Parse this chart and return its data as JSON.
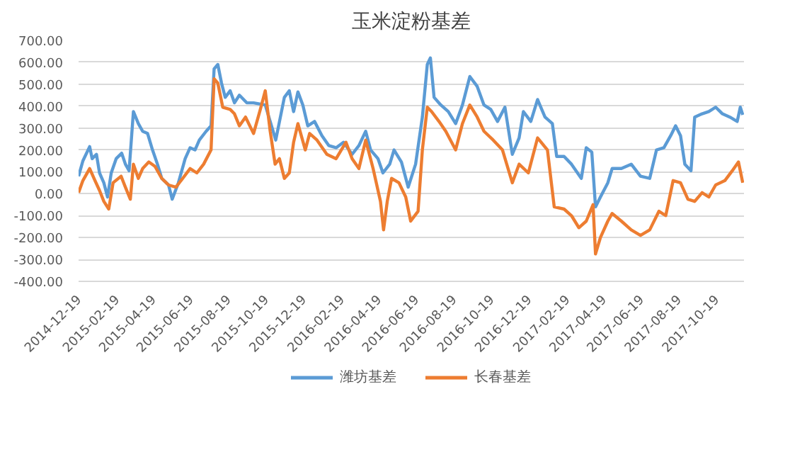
{
  "chart_data": {
    "type": "line",
    "title": "玉米淀粉基差",
    "xlim": [
      "2014-12-19",
      "2017-12-03"
    ],
    "xticks": [
      "2014-12-19",
      "2015-02-19",
      "2015-04-19",
      "2015-06-19",
      "2015-08-19",
      "2015-10-19",
      "2015-12-19",
      "2016-02-19",
      "2016-04-19",
      "2016-06-19",
      "2016-08-19",
      "2016-10-19",
      "2016-12-19",
      "2017-02-19",
      "2017-04-19",
      "2017-06-19",
      "2017-08-19",
      "2017-10-19"
    ],
    "ylim": [
      -400,
      700
    ],
    "yticks": [
      {
        "value": -400,
        "label": "-400.00"
      },
      {
        "value": -300,
        "label": "-300.00"
      },
      {
        "value": -200,
        "label": "-200.00"
      },
      {
        "value": -100,
        "label": "-100.00"
      },
      {
        "value": 0,
        "label": "0.00"
      },
      {
        "value": 100,
        "label": "100.00"
      },
      {
        "value": 200,
        "label": "200.00"
      },
      {
        "value": 300,
        "label": "300.00"
      },
      {
        "value": 400,
        "label": "400.00"
      },
      {
        "value": 500,
        "label": "500.00"
      },
      {
        "value": 600,
        "label": "600.00"
      },
      {
        "value": 700,
        "label": "700.00"
      }
    ],
    "grid": "y",
    "legend": "bottom",
    "marker": "none",
    "line_style": "solid",
    "series": [
      {
        "name": "潍坊基差",
        "color": "#5b9bd5",
        "x": [
          "2014-12-19",
          "2014-12-26",
          "2015-01-06",
          "2015-01-10",
          "2015-01-17",
          "2015-01-22",
          "2015-01-29",
          "2015-02-04",
          "2015-02-10",
          "2015-02-18",
          "2015-02-27",
          "2015-03-05",
          "2015-03-11",
          "2015-03-18",
          "2015-03-26",
          "2015-04-02",
          "2015-04-10",
          "2015-04-18",
          "2015-04-26",
          "2015-05-03",
          "2015-05-14",
          "2015-05-20",
          "2015-05-30",
          "2015-06-10",
          "2015-06-18",
          "2015-06-26",
          "2015-07-03",
          "2015-07-14",
          "2015-07-22",
          "2015-07-27",
          "2015-08-02",
          "2015-08-08",
          "2015-08-14",
          "2015-08-22",
          "2015-08-29",
          "2015-09-06",
          "2015-09-18",
          "2015-09-29",
          "2015-10-18",
          "2015-10-26",
          "2015-11-04",
          "2015-11-18",
          "2015-11-26",
          "2015-12-03",
          "2015-12-10",
          "2015-12-18",
          "2015-12-26",
          "2016-01-06",
          "2016-01-18",
          "2016-01-29",
          "2016-02-10",
          "2016-02-22",
          "2016-03-07",
          "2016-03-18",
          "2016-03-29",
          "2016-04-06",
          "2016-04-18",
          "2016-04-26",
          "2016-05-07",
          "2016-05-14",
          "2016-05-26",
          "2016-06-06",
          "2016-06-18",
          "2016-06-29",
          "2016-07-07",
          "2016-07-12",
          "2016-07-18",
          "2016-07-29",
          "2016-08-10",
          "2016-08-22",
          "2016-09-02",
          "2016-09-14",
          "2016-09-26",
          "2016-10-07",
          "2016-10-18",
          "2016-10-29",
          "2016-11-10",
          "2016-11-22",
          "2016-12-03",
          "2016-12-10",
          "2016-12-22",
          "2017-01-02",
          "2017-01-14",
          "2017-01-26",
          "2017-02-02",
          "2017-02-14",
          "2017-02-26",
          "2017-03-14",
          "2017-03-22",
          "2017-03-31",
          "2017-04-06",
          "2017-04-14",
          "2017-04-26",
          "2017-05-03",
          "2017-05-18",
          "2017-06-03",
          "2017-06-18",
          "2017-07-03",
          "2017-07-14",
          "2017-07-26",
          "2017-08-06",
          "2017-08-14",
          "2017-08-22",
          "2017-08-29",
          "2017-09-08",
          "2017-09-14",
          "2017-09-26",
          "2017-10-07",
          "2017-10-18",
          "2017-10-29",
          "2017-11-10",
          "2017-11-22",
          "2017-11-27",
          "2017-12-01"
        ],
        "values": [
          80,
          150,
          215,
          160,
          180,
          95,
          50,
          -15,
          95,
          160,
          185,
          135,
          105,
          375,
          320,
          285,
          275,
          200,
          135,
          70,
          40,
          -25,
          50,
          160,
          210,
          200,
          245,
          285,
          310,
          570,
          590,
          505,
          440,
          470,
          415,
          450,
          415,
          415,
          405,
          330,
          245,
          440,
          470,
          375,
          465,
          405,
          310,
          330,
          265,
          220,
          210,
          235,
          180,
          220,
          285,
          200,
          160,
          95,
          135,
          200,
          145,
          30,
          135,
          350,
          590,
          620,
          440,
          405,
          375,
          320,
          405,
          535,
          490,
          405,
          385,
          330,
          395,
          180,
          255,
          375,
          330,
          430,
          350,
          320,
          170,
          170,
          135,
          70,
          210,
          190,
          -60,
          -15,
          50,
          115,
          115,
          135,
          80,
          70,
          200,
          210,
          265,
          310,
          265,
          135,
          105,
          350,
          365,
          375,
          395,
          365,
          350,
          330,
          395,
          360
        ]
      },
      {
        "name": "长春基差",
        "color": "#ed7d31",
        "x": [
          "2014-12-19",
          "2014-12-26",
          "2015-01-06",
          "2015-01-13",
          "2015-01-22",
          "2015-01-29",
          "2015-02-06",
          "2015-02-13",
          "2015-02-26",
          "2015-03-05",
          "2015-03-13",
          "2015-03-18",
          "2015-03-26",
          "2015-04-02",
          "2015-04-12",
          "2015-04-22",
          "2015-05-03",
          "2015-05-14",
          "2015-05-26",
          "2015-06-06",
          "2015-06-18",
          "2015-06-29",
          "2015-07-10",
          "2015-07-22",
          "2015-07-27",
          "2015-08-02",
          "2015-08-10",
          "2015-08-22",
          "2015-08-29",
          "2015-09-06",
          "2015-09-16",
          "2015-09-29",
          "2015-10-10",
          "2015-10-18",
          "2015-10-26",
          "2015-11-03",
          "2015-11-10",
          "2015-11-18",
          "2015-11-26",
          "2015-12-03",
          "2015-12-10",
          "2015-12-22",
          "2015-12-29",
          "2016-01-10",
          "2016-01-26",
          "2016-02-10",
          "2016-02-26",
          "2016-03-07",
          "2016-03-18",
          "2016-03-29",
          "2016-04-10",
          "2016-04-22",
          "2016-04-27",
          "2016-05-03",
          "2016-05-10",
          "2016-05-22",
          "2016-06-02",
          "2016-06-10",
          "2016-06-22",
          "2016-06-29",
          "2016-07-07",
          "2016-07-14",
          "2016-07-26",
          "2016-08-06",
          "2016-08-22",
          "2016-09-02",
          "2016-09-14",
          "2016-09-26",
          "2016-10-07",
          "2016-10-22",
          "2016-11-06",
          "2016-11-22",
          "2016-12-03",
          "2016-12-18",
          "2017-01-02",
          "2017-01-18",
          "2017-01-29",
          "2017-02-14",
          "2017-02-26",
          "2017-03-10",
          "2017-03-22",
          "2017-04-02",
          "2017-04-06",
          "2017-04-14",
          "2017-04-26",
          "2017-05-03",
          "2017-05-18",
          "2017-06-03",
          "2017-06-18",
          "2017-07-03",
          "2017-07-18",
          "2017-07-29",
          "2017-08-10",
          "2017-08-22",
          "2017-09-03",
          "2017-09-14",
          "2017-09-26",
          "2017-10-07",
          "2017-10-18",
          "2017-11-02",
          "2017-11-14",
          "2017-11-24",
          "2017-12-01"
        ],
        "values": [
          5,
          60,
          115,
          70,
          15,
          -35,
          -70,
          50,
          80,
          30,
          -25,
          135,
          70,
          115,
          145,
          125,
          70,
          40,
          30,
          70,
          115,
          95,
          135,
          200,
          525,
          505,
          395,
          385,
          365,
          310,
          350,
          275,
          385,
          470,
          285,
          135,
          160,
          70,
          95,
          235,
          320,
          200,
          275,
          245,
          180,
          160,
          235,
          160,
          115,
          245,
          115,
          -35,
          -165,
          -35,
          70,
          50,
          -15,
          -125,
          -80,
          200,
          395,
          375,
          330,
          285,
          200,
          320,
          405,
          350,
          285,
          245,
          200,
          50,
          135,
          95,
          255,
          200,
          -60,
          -70,
          -100,
          -155,
          -125,
          -50,
          -275,
          -200,
          -125,
          -90,
          -125,
          -165,
          -190,
          -165,
          -80,
          -100,
          60,
          50,
          -25,
          -35,
          5,
          -15,
          40,
          60,
          105,
          145,
          50
        ]
      }
    ]
  }
}
